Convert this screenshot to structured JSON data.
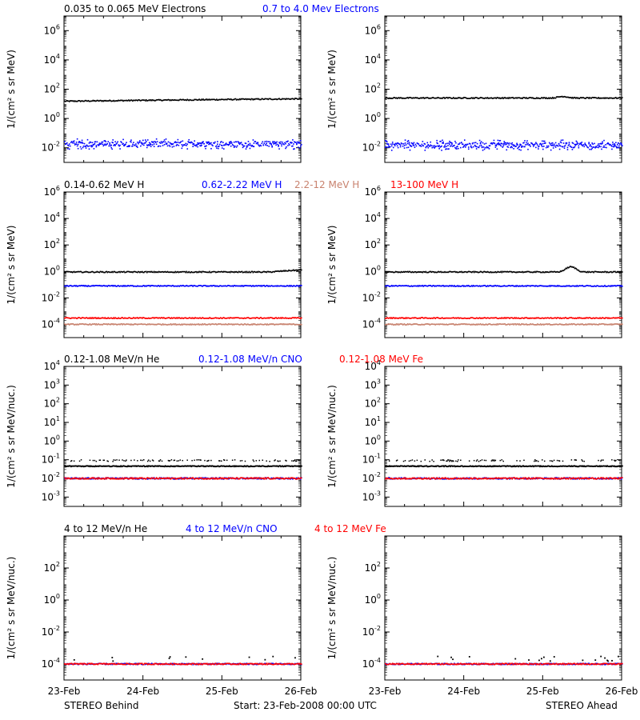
{
  "footer": {
    "left": "STEREO Behind",
    "center": "Start: 23-Feb-2008 00:00 UTC",
    "right": "STEREO Ahead"
  },
  "x_axis": {
    "ticks": [
      "23-Feb",
      "24-Feb",
      "25-Feb",
      "26-Feb"
    ]
  },
  "rows": [
    {
      "ylabel": "1/(cm² s sr MeV)",
      "legend": [
        {
          "label": "0.035 to 0.065 MeV Electrons",
          "color": "#000000"
        },
        {
          "label": "0.7 to 4.0 Mev Electrons",
          "color": "#0000ff"
        }
      ],
      "ylim_exp": [
        -3,
        7
      ],
      "y_ticks": [
        {
          "base": "10",
          "exp": "6"
        },
        {
          "base": "10",
          "exp": "4"
        },
        {
          "base": "10",
          "exp": "2"
        },
        {
          "base": "10",
          "exp": "0"
        },
        {
          "base": "10",
          "exp": "-2"
        }
      ]
    },
    {
      "ylabel": "1/(cm² s sr MeV)",
      "legend": [
        {
          "label": "0.14-0.62 MeV H",
          "color": "#000000"
        },
        {
          "label": "0.62-2.22 MeV H",
          "color": "#0000ff"
        },
        {
          "label": "2.2-12 MeV H",
          "color": "#c8826e"
        },
        {
          "label": "13-100 MeV H",
          "color": "#ff0000"
        }
      ],
      "ylim_exp": [
        -5,
        6
      ],
      "y_ticks": [
        {
          "base": "10",
          "exp": "6"
        },
        {
          "base": "10",
          "exp": "4"
        },
        {
          "base": "10",
          "exp": "2"
        },
        {
          "base": "10",
          "exp": "0"
        },
        {
          "base": "10",
          "exp": "-2"
        },
        {
          "base": "10",
          "exp": "-4"
        }
      ]
    },
    {
      "ylabel": "1/(cm² s sr MeV/nuc.)",
      "legend": [
        {
          "label": "0.12-1.08 MeV/n He",
          "color": "#000000"
        },
        {
          "label": "0.12-1.08 MeV/n CNO",
          "color": "#0000ff"
        },
        {
          "label": "0.12-1.08 MeV Fe",
          "color": "#ff0000"
        }
      ],
      "ylim_exp": [
        -3.5,
        4
      ],
      "y_ticks": [
        {
          "base": "10",
          "exp": "4"
        },
        {
          "base": "10",
          "exp": "3"
        },
        {
          "base": "10",
          "exp": "2"
        },
        {
          "base": "10",
          "exp": "1"
        },
        {
          "base": "10",
          "exp": "0"
        },
        {
          "base": "10",
          "exp": "-1"
        },
        {
          "base": "10",
          "exp": "-2"
        },
        {
          "base": "10",
          "exp": "-3"
        }
      ]
    },
    {
      "ylabel": "1/(cm² s sr MeV/nuc.)",
      "legend": [
        {
          "label": "4 to 12 MeV/n He",
          "color": "#000000"
        },
        {
          "label": "4 to 12 MeV/n CNO",
          "color": "#0000ff"
        },
        {
          "label": "4 to 12 MeV Fe",
          "color": "#ff0000"
        }
      ],
      "ylim_exp": [
        -5,
        4
      ],
      "y_ticks": [
        {
          "base": "10",
          "exp": "2"
        },
        {
          "base": "10",
          "exp": "0"
        },
        {
          "base": "10",
          "exp": "-2"
        },
        {
          "base": "10",
          "exp": "-4"
        }
      ]
    }
  ],
  "chart_data": [
    {
      "type": "scatter",
      "panel": "electrons-behind",
      "x_start": "23-Feb-2008",
      "x_end": "26-Feb-2008",
      "y_scale": "log",
      "series": [
        {
          "name": "0.035 to 0.065 MeV Electrons",
          "color": "#000000",
          "level": 18,
          "trend": [
            [
              0,
              15
            ],
            [
              3,
              22
            ]
          ]
        },
        {
          "name": "0.7 to 4.0 Mev Electrons",
          "color": "#0000ff",
          "level": 0.018,
          "spread": "scattered"
        }
      ]
    },
    {
      "type": "scatter",
      "panel": "electrons-ahead",
      "x_start": "23-Feb-2008",
      "x_end": "26-Feb-2008",
      "y_scale": "log",
      "series": [
        {
          "name": "0.035 to 0.065 MeV Electrons",
          "color": "#000000",
          "level": 25,
          "bump": {
            "at": 2.25,
            "value": 32
          }
        },
        {
          "name": "0.7 to 4.0 Mev Electrons",
          "color": "#0000ff",
          "level": 0.015,
          "spread": "scattered"
        }
      ]
    },
    {
      "type": "scatter",
      "panel": "protons-behind",
      "x_start": "23-Feb-2008",
      "x_end": "26-Feb-2008",
      "y_scale": "log",
      "series": [
        {
          "name": "0.14-0.62 MeV H",
          "color": "#000000",
          "level": 0.9,
          "trend_end": 1.3
        },
        {
          "name": "0.62-2.22 MeV H",
          "color": "#0000ff",
          "level": 0.08
        },
        {
          "name": "2.2-12 MeV H",
          "color": "#c8826e",
          "level": 0.0001
        },
        {
          "name": "13-100 MeV H",
          "color": "#ff0000",
          "level": 0.0003
        }
      ]
    },
    {
      "type": "scatter",
      "panel": "protons-ahead",
      "x_start": "23-Feb-2008",
      "x_end": "26-Feb-2008",
      "y_scale": "log",
      "series": [
        {
          "name": "0.14-0.62 MeV H",
          "color": "#000000",
          "level": 0.9,
          "bump": {
            "at": 2.35,
            "value": 2.2
          }
        },
        {
          "name": "0.62-2.22 MeV H",
          "color": "#0000ff",
          "level": 0.08
        },
        {
          "name": "2.2-12 MeV H",
          "color": "#c8826e",
          "level": 0.0001
        },
        {
          "name": "13-100 MeV H",
          "color": "#ff0000",
          "level": 0.0003
        }
      ]
    },
    {
      "type": "scatter",
      "panel": "heavy-low-behind",
      "x_start": "23-Feb-2008",
      "x_end": "26-Feb-2008",
      "y_scale": "log",
      "series": [
        {
          "name": "0.12-1.08 MeV/n He",
          "color": "#000000",
          "level": 0.045,
          "upper": 0.09
        },
        {
          "name": "0.12-1.08 MeV/n CNO",
          "color": "#0000ff",
          "level": 0.01
        },
        {
          "name": "0.12-1.08 MeV Fe",
          "color": "#ff0000",
          "level": 0.01
        }
      ]
    },
    {
      "type": "scatter",
      "panel": "heavy-low-ahead",
      "x_start": "23-Feb-2008",
      "x_end": "26-Feb-2008",
      "y_scale": "log",
      "series": [
        {
          "name": "0.12-1.08 MeV/n He",
          "color": "#000000",
          "level": 0.045,
          "upper": 0.09
        },
        {
          "name": "0.12-1.08 MeV/n CNO",
          "color": "#0000ff",
          "level": 0.01
        },
        {
          "name": "0.12-1.08 MeV Fe",
          "color": "#ff0000",
          "level": 0.01
        }
      ]
    },
    {
      "type": "scatter",
      "panel": "heavy-high-behind",
      "x_start": "23-Feb-2008",
      "x_end": "26-Feb-2008",
      "y_scale": "log",
      "series": [
        {
          "name": "4 to 12 MeV/n He",
          "color": "#000000",
          "level": 0.00015,
          "sparse": true
        },
        {
          "name": "4 to 12 MeV/n CNO",
          "color": "#0000ff",
          "level": 0.0001
        },
        {
          "name": "4 to 12 MeV Fe",
          "color": "#ff0000",
          "level": 0.0001
        }
      ]
    },
    {
      "type": "scatter",
      "panel": "heavy-high-ahead",
      "x_start": "23-Feb-2008",
      "x_end": "26-Feb-2008",
      "y_scale": "log",
      "series": [
        {
          "name": "4 to 12 MeV/n He",
          "color": "#000000",
          "level": 0.00015,
          "sparse": true
        },
        {
          "name": "4 to 12 MeV/n CNO",
          "color": "#0000ff",
          "level": 0.0001
        },
        {
          "name": "4 to 12 MeV Fe",
          "color": "#ff0000",
          "level": 0.0001
        }
      ]
    }
  ]
}
